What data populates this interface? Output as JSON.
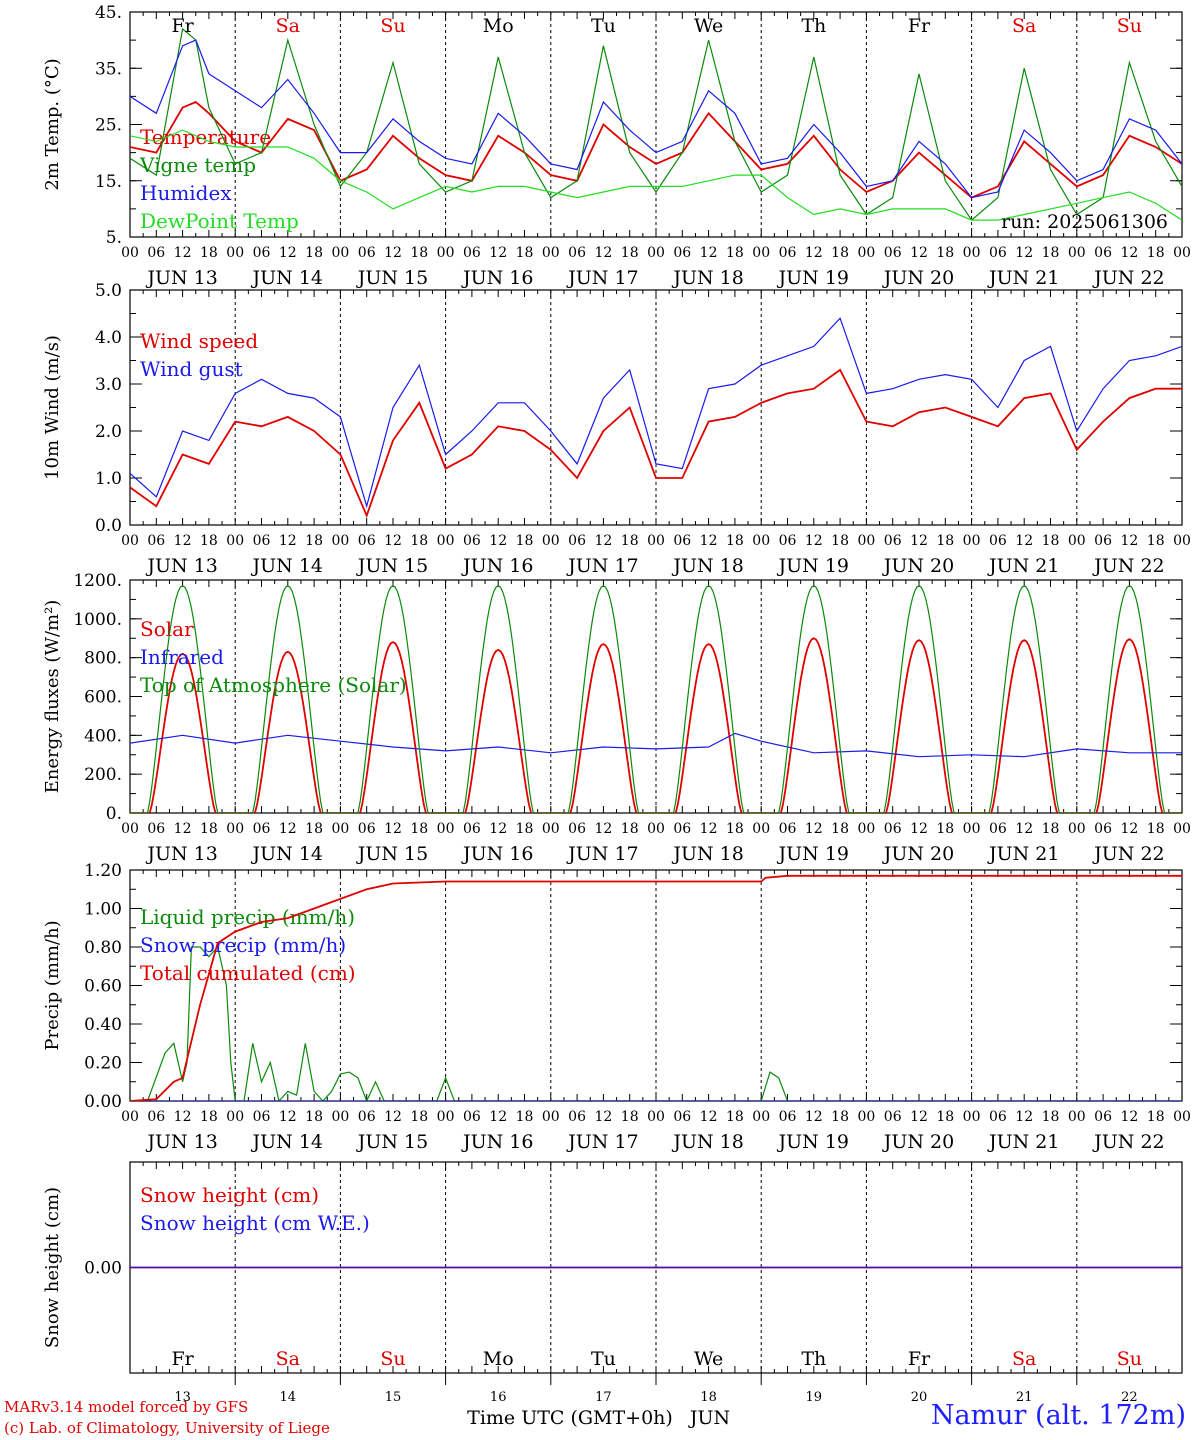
{
  "run_label": "run: 2025061306",
  "day_names": [
    "Fr",
    "Sa",
    "Su",
    "Mo",
    "Tu",
    "We",
    "Th",
    "Fr",
    "Sa",
    "Su"
  ],
  "day_labels": [
    "JUN 13",
    "JUN 14",
    "JUN 15",
    "JUN 16",
    "JUN 17",
    "JUN 18",
    "JUN 19",
    "JUN 20",
    "JUN 21",
    "JUN 22"
  ],
  "day_numbers": [
    "13",
    "14",
    "15",
    "16",
    "17",
    "18",
    "19",
    "20",
    "21",
    "22"
  ],
  "hour_ticks": [
    "00",
    "06",
    "12",
    "18"
  ],
  "bottom_axis_label": "Time UTC (GMT+0h)",
  "bottom_month": "JUN",
  "colors": {
    "weekend": "#e00000",
    "weekday": "#000000",
    "red": "#e00000",
    "green": "#0a8a0a",
    "blue": "#1a1aee",
    "lightgreen": "#22dd22"
  },
  "credits": [
    "MARv3.14 model forced by GFS",
    "(c) Lab. of Climatology, University of Liege"
  ],
  "station": "Namur (alt. 172m)",
  "chart_data": [
    {
      "type": "line",
      "ylabel": "2m Temp. (°C)",
      "ylim": [
        5,
        45
      ],
      "yticks": [
        "5.",
        "15.",
        "25.",
        "35.",
        "45."
      ],
      "x_unit": "hours since 2025-06-13 00 UTC",
      "series": [
        {
          "name": "Temperature",
          "color": "red",
          "x": [
            0,
            6,
            12,
            15,
            18,
            24,
            30,
            36,
            42,
            48,
            54,
            60,
            66,
            72,
            78,
            84,
            90,
            96,
            102,
            108,
            114,
            120,
            126,
            132,
            138,
            144,
            150,
            156,
            162,
            168,
            174,
            180,
            186,
            192,
            198,
            204,
            210,
            216,
            222,
            228,
            234,
            240
          ],
          "values": [
            21,
            20,
            28,
            29,
            27,
            22,
            20,
            26,
            24,
            15,
            17,
            23,
            19,
            16,
            15,
            23,
            20,
            16,
            15,
            25,
            21,
            18,
            20,
            27,
            22,
            17,
            18,
            23,
            17,
            13,
            15,
            20,
            16,
            12,
            14,
            22,
            18,
            14,
            16,
            23,
            21,
            18
          ]
        },
        {
          "name": "Vigne temp",
          "color": "green",
          "x": [
            0,
            6,
            12,
            15,
            18,
            24,
            30,
            36,
            42,
            48,
            54,
            60,
            66,
            72,
            78,
            84,
            90,
            96,
            102,
            108,
            114,
            120,
            126,
            132,
            138,
            144,
            150,
            156,
            162,
            168,
            174,
            180,
            186,
            192,
            198,
            204,
            210,
            216,
            222,
            228,
            234,
            240
          ],
          "values": [
            19,
            16,
            42,
            40,
            28,
            18,
            20,
            40,
            25,
            14,
            20,
            36,
            18,
            13,
            15,
            37,
            20,
            12,
            15,
            39,
            20,
            13,
            20,
            40,
            22,
            13,
            16,
            37,
            16,
            9,
            12,
            34,
            15,
            8,
            12,
            35,
            17,
            9,
            12,
            36,
            22,
            14
          ]
        },
        {
          "name": "Humidex",
          "color": "blue",
          "x": [
            0,
            6,
            12,
            15,
            18,
            24,
            30,
            36,
            42,
            48,
            54,
            60,
            66,
            72,
            78,
            84,
            90,
            96,
            102,
            108,
            114,
            120,
            126,
            132,
            138,
            144,
            150,
            156,
            162,
            168,
            174,
            180,
            186,
            192,
            198,
            204,
            210,
            216,
            222,
            228,
            234,
            240
          ],
          "values": [
            30,
            27,
            39,
            40,
            34,
            31,
            28,
            33,
            27,
            20,
            20,
            26,
            22,
            19,
            18,
            27,
            23,
            18,
            17,
            29,
            24,
            20,
            22,
            31,
            27,
            18,
            19,
            25,
            20,
            14,
            15,
            22,
            18,
            12,
            13,
            24,
            20,
            15,
            17,
            26,
            24,
            18
          ]
        },
        {
          "name": "DewPoint Temp",
          "color": "lightgreen",
          "x": [
            0,
            6,
            12,
            18,
            24,
            30,
            36,
            42,
            48,
            54,
            60,
            66,
            72,
            78,
            84,
            90,
            96,
            102,
            108,
            114,
            120,
            126,
            132,
            138,
            144,
            150,
            156,
            162,
            168,
            174,
            180,
            186,
            192,
            198,
            204,
            210,
            216,
            222,
            228,
            234,
            240
          ],
          "values": [
            23,
            22,
            24,
            22,
            21,
            21,
            21,
            19,
            15,
            13,
            10,
            12,
            14,
            13,
            14,
            14,
            13,
            12,
            13,
            14,
            14,
            14,
            15,
            16,
            16,
            12,
            9,
            10,
            9,
            10,
            10,
            10,
            8,
            8,
            9,
            10,
            11,
            12,
            13,
            11,
            8
          ]
        }
      ]
    },
    {
      "type": "line",
      "ylabel": "10m Wind (m/s)",
      "ylim": [
        0,
        5
      ],
      "yticks": [
        "0.0",
        "1.0",
        "2.0",
        "3.0",
        "4.0",
        "5.0"
      ],
      "x_unit": "hours since 2025-06-13 00 UTC",
      "series": [
        {
          "name": "Wind speed",
          "color": "red",
          "x": [
            0,
            6,
            12,
            18,
            24,
            30,
            36,
            42,
            48,
            54,
            60,
            66,
            72,
            78,
            84,
            90,
            96,
            102,
            108,
            114,
            120,
            126,
            132,
            138,
            144,
            150,
            156,
            162,
            168,
            174,
            180,
            186,
            192,
            198,
            204,
            210,
            216,
            222,
            228,
            234,
            240
          ],
          "values": [
            0.8,
            0.4,
            1.5,
            1.3,
            2.2,
            2.1,
            2.3,
            2.0,
            1.5,
            0.2,
            1.8,
            2.6,
            1.2,
            1.5,
            2.1,
            2.0,
            1.6,
            1.0,
            2.0,
            2.5,
            1.0,
            1.0,
            2.2,
            2.3,
            2.6,
            2.8,
            2.9,
            3.3,
            2.2,
            2.1,
            2.4,
            2.5,
            2.3,
            2.1,
            2.7,
            2.8,
            1.6,
            2.2,
            2.7,
            2.9,
            2.9
          ]
        },
        {
          "name": "Wind gust",
          "color": "blue",
          "x": [
            0,
            6,
            12,
            18,
            24,
            30,
            36,
            42,
            48,
            54,
            60,
            66,
            72,
            78,
            84,
            90,
            96,
            102,
            108,
            114,
            120,
            126,
            132,
            138,
            144,
            150,
            156,
            162,
            168,
            174,
            180,
            186,
            192,
            198,
            204,
            210,
            216,
            222,
            228,
            234,
            240
          ],
          "values": [
            1.1,
            0.6,
            2.0,
            1.8,
            2.8,
            3.1,
            2.8,
            2.7,
            2.3,
            0.4,
            2.5,
            3.4,
            1.5,
            2.0,
            2.6,
            2.6,
            2.0,
            1.3,
            2.7,
            3.3,
            1.3,
            1.2,
            2.9,
            3.0,
            3.4,
            3.6,
            3.8,
            4.4,
            2.8,
            2.9,
            3.1,
            3.2,
            3.1,
            2.5,
            3.5,
            3.8,
            2.0,
            2.9,
            3.5,
            3.6,
            3.8
          ]
        }
      ]
    },
    {
      "type": "line",
      "ylabel": "Energy fluxes (W/m²)",
      "ylim": [
        0,
        1200
      ],
      "yticks": [
        "0.",
        "200.",
        "400.",
        "600.",
        "800.",
        "1000.",
        "1200."
      ],
      "x_unit": "hours since 2025-06-13 00 UTC",
      "series": [
        {
          "name": "Solar",
          "color": "red",
          "daily_peak": [
            820,
            830,
            880,
            840,
            870,
            870,
            900,
            890,
            890,
            895
          ]
        },
        {
          "name": "Infrared",
          "color": "blue",
          "x": [
            0,
            12,
            24,
            36,
            48,
            60,
            72,
            84,
            96,
            108,
            120,
            132,
            138,
            144,
            156,
            168,
            180,
            192,
            204,
            216,
            228,
            240
          ],
          "values": [
            360,
            400,
            360,
            400,
            370,
            340,
            320,
            340,
            310,
            340,
            330,
            340,
            410,
            370,
            310,
            320,
            290,
            300,
            290,
            330,
            310,
            310
          ]
        },
        {
          "name": "Top of Atmosphere (Solar)",
          "color": "green",
          "daily_peak": [
            1170,
            1170,
            1170,
            1170,
            1170,
            1170,
            1170,
            1170,
            1170,
            1170
          ]
        }
      ]
    },
    {
      "type": "line",
      "ylabel": "Precip (mm/h)",
      "ylim": [
        0,
        1.2
      ],
      "yticks": [
        "0.00",
        "0.20",
        "0.40",
        "0.60",
        "0.80",
        "1.00",
        "1.20"
      ],
      "x_unit": "hours since 2025-06-13 00 UTC",
      "series": [
        {
          "name": "Liquid precip (mm/h)",
          "color": "green",
          "x": [
            0,
            4,
            8,
            10,
            12,
            13,
            14,
            16,
            18,
            20,
            22,
            23,
            24,
            26,
            28,
            30,
            32,
            34,
            36,
            38,
            40,
            42,
            44,
            46,
            48,
            50,
            52,
            54,
            56,
            58,
            60,
            62,
            64,
            66,
            68,
            70,
            72,
            74,
            76,
            78,
            80,
            82,
            84,
            86,
            88,
            90,
            92,
            94,
            96,
            100,
            144,
            146,
            148,
            150,
            152,
            240
          ],
          "values": [
            0,
            0,
            0.25,
            0.3,
            0.1,
            0.2,
            0.8,
            0.8,
            0.75,
            0.8,
            0.6,
            0.2,
            0,
            0,
            0.3,
            0.1,
            0.2,
            0,
            0.05,
            0.03,
            0.3,
            0.05,
            0,
            0.05,
            0.14,
            0.15,
            0.12,
            0,
            0.1,
            0,
            0,
            0,
            0,
            0,
            0,
            0,
            0.12,
            0,
            0,
            0,
            0,
            0,
            0,
            0,
            0,
            0,
            0,
            0,
            0,
            0,
            0,
            0.15,
            0.12,
            0,
            0,
            0
          ]
        },
        {
          "name": "Snow precip (mm/h)",
          "color": "blue",
          "x": [
            0,
            240
          ],
          "values": [
            0,
            0
          ]
        },
        {
          "name": "Total cumulated (cm)",
          "color": "red",
          "x": [
            0,
            6,
            10,
            12,
            16,
            20,
            24,
            30,
            36,
            42,
            48,
            54,
            60,
            72,
            96,
            120,
            144,
            145,
            150,
            240
          ],
          "values": [
            0,
            0.01,
            0.1,
            0.12,
            0.5,
            0.82,
            0.88,
            0.93,
            0.95,
            1.0,
            1.05,
            1.1,
            1.13,
            1.14,
            1.14,
            1.14,
            1.14,
            1.16,
            1.17,
            1.17
          ]
        }
      ]
    },
    {
      "type": "line",
      "ylabel": "Snow height (cm)",
      "ylim": [
        -1,
        1
      ],
      "yticks": [
        "0.00"
      ],
      "x_unit": "hours since 2025-06-13 00 UTC",
      "series": [
        {
          "name": "Snow height (cm)",
          "color": "red",
          "x": [
            0,
            240
          ],
          "values": [
            0,
            0
          ]
        },
        {
          "name": "Snow height (cm W.E.)",
          "color": "blue",
          "x": [
            0,
            240
          ],
          "values": [
            0,
            0
          ]
        }
      ]
    }
  ]
}
